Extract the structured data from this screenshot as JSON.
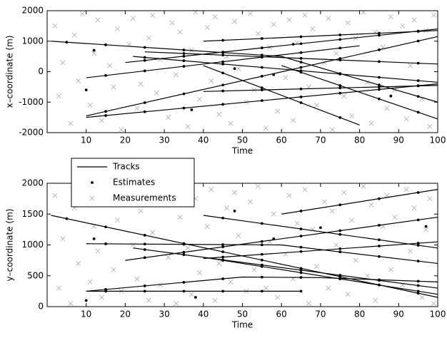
{
  "chart_data": [
    {
      "type": "scatter",
      "xlabel": "Time",
      "ylabel": "x–coordinate (m)",
      "xlim": [
        0,
        100
      ],
      "ylim": [
        -2000,
        2000
      ],
      "xticks": [
        10,
        20,
        30,
        40,
        50,
        60,
        70,
        80,
        90,
        100
      ],
      "yticks": [
        -2000,
        -1000,
        0,
        1000,
        2000
      ],
      "series": [
        {
          "marker": "line",
          "color": "#000000",
          "tracks": [
            {
              "x": [
                1,
                60,
                100
              ],
              "values": [
                1000,
                500,
                -1000
              ]
            },
            {
              "x": [
                10,
                100
              ],
              "values": [
                -1450,
                1150
              ]
            },
            {
              "x": [
                10,
                100
              ],
              "values": [
                -1500,
                -400
              ]
            },
            {
              "x": [
                10,
                80
              ],
              "values": [
                -200,
                850
              ]
            },
            {
              "x": [
                20,
                100
              ],
              "values": [
                300,
                1400
              ]
            },
            {
              "x": [
                22,
                100
              ],
              "values": [
                500,
                -350
              ]
            },
            {
              "x": [
                40,
                100
              ],
              "values": [
                1000,
                1350
              ]
            },
            {
              "x": [
                40,
                80
              ],
              "values": [
                200,
                -1750
              ]
            },
            {
              "x": [
                60,
                100
              ],
              "values": [
                200,
                -1550
              ]
            },
            {
              "x": [
                40,
                100
              ],
              "values": [
                -650,
                -450
              ]
            },
            {
              "x": [
                25,
                100
              ],
              "values": [
                650,
                250
              ]
            }
          ]
        },
        {
          "marker": "dot",
          "color": "#000000",
          "x": [
            5,
            15,
            25,
            35,
            45,
            55,
            65,
            75,
            85,
            95,
            15,
            25,
            35,
            45,
            55,
            65,
            75,
            85,
            95,
            15,
            25,
            35,
            45,
            55,
            65,
            75,
            85,
            95,
            15,
            25,
            35,
            45,
            55,
            65,
            75,
            25,
            35,
            45,
            55,
            65,
            75,
            85,
            95,
            25,
            35,
            45,
            55,
            65,
            75,
            85,
            95,
            45,
            55,
            65,
            75,
            85,
            95,
            45,
            55,
            65,
            75,
            65,
            75,
            85,
            95,
            45,
            55,
            65,
            75,
            85,
            95,
            35,
            45,
            55,
            65,
            75,
            85,
            95,
            10,
            12,
            37,
            48,
            58,
            63,
            88
          ],
          "values": [
            966,
            881,
            796,
            711,
            627,
            542,
            312,
            -62,
            -437,
            -812,
            -1306,
            -1017,
            -728,
            -439,
            -150,
            139,
            428,
            717,
            1006,
            -1439,
            -1317,
            -1194,
            -1072,
            -950,
            -828,
            -706,
            -583,
            -461,
            -125,
            25,
            175,
            325,
            475,
            625,
            775,
            369,
            506,
            644,
            781,
            919,
            1056,
            1194,
            1331,
            467,
            358,
            249,
            140,
            31,
            -78,
            -187,
            -296,
            1029,
            1088,
            1146,
            1204,
            1263,
            1321,
            -44,
            -531,
            -1019,
            -1506,
            -19,
            -456,
            -894,
            -1331,
            -633,
            -600,
            -567,
            -533,
            -500,
            -467,
            597,
            543,
            490,
            437,
            383,
            330,
            277,
            -600,
            700,
            -1250,
            100,
            -100,
            900,
            -800
          ]
        },
        {
          "marker": "x",
          "color": "#b4b4b4",
          "x": [
            2,
            3,
            4,
            6,
            7,
            8,
            9,
            11,
            12,
            13,
            14,
            16,
            17,
            18,
            19,
            21,
            22,
            23,
            24,
            26,
            27,
            28,
            29,
            31,
            32,
            33,
            34,
            36,
            37,
            38,
            39,
            41,
            42,
            43,
            44,
            46,
            47,
            48,
            49,
            51,
            52,
            53,
            54,
            56,
            57,
            58,
            59,
            61,
            62,
            63,
            64,
            66,
            67,
            68,
            69,
            71,
            72,
            73,
            74,
            76,
            77,
            78,
            79,
            81,
            82,
            83,
            84,
            86,
            87,
            88,
            89,
            91,
            92,
            93,
            94,
            96,
            97,
            98,
            99
          ],
          "values": [
            1500,
            -800,
            300,
            -1700,
            1200,
            -300,
            1900,
            -1100,
            600,
            1700,
            -1600,
            200,
            -500,
            1400,
            -1900,
            900,
            1750,
            -1200,
            -400,
            1100,
            1850,
            -700,
            400,
            -1500,
            1600,
            -100,
            1300,
            -1800,
            700,
            1950,
            -900,
            1450,
            -300,
            1800,
            -1400,
            500,
            -1700,
            1650,
            100,
            -1000,
            1900,
            -600,
            1250,
            -1850,
            800,
            1550,
            -1300,
            -200,
            1700,
            -1600,
            950,
            1850,
            -500,
            1400,
            -1100,
            300,
            1750,
            -1900,
            600,
            -800,
            1600,
            -1450,
            1100,
            1950,
            -350,
            -1700,
            1300,
            800,
            -1200,
            1800,
            -600,
            1500,
            -1550,
            200,
            1700,
            -900,
            1350,
            -1800,
            1850
          ]
        }
      ]
    },
    {
      "type": "scatter",
      "xlabel": "Time",
      "ylabel": "y–coordinate (m)",
      "xlim": [
        0,
        100
      ],
      "ylim": [
        0,
        2000
      ],
      "xticks": [
        10,
        20,
        30,
        40,
        50,
        60,
        70,
        80,
        90,
        100
      ],
      "yticks": [
        0,
        500,
        1000,
        1500,
        2000
      ],
      "legend": "upper left",
      "series": [
        {
          "name": "Tracks",
          "marker": "line",
          "color": "#000000",
          "tracks": [
            {
              "x": [
                1,
                100
              ],
              "values": [
                1480,
                150
              ]
            },
            {
              "x": [
                10,
                60,
                100
              ],
              "values": [
                1020,
                1000,
                700
              ]
            },
            {
              "x": [
                10,
                65
              ],
              "values": [
                250,
                250
              ]
            },
            {
              "x": [
                10,
                50,
                70,
                100
              ],
              "values": [
                250,
                480,
                470,
                400
              ]
            },
            {
              "x": [
                20,
                100
              ],
              "values": [
                750,
                1450
              ]
            },
            {
              "x": [
                40,
                100
              ],
              "values": [
                1480,
                950
              ]
            },
            {
              "x": [
                60,
                100
              ],
              "values": [
                1500,
                1900
              ]
            },
            {
              "x": [
                22,
                100
              ],
              "values": [
                950,
                300
              ]
            },
            {
              "x": [
                40,
                100
              ],
              "values": [
                800,
                200
              ]
            },
            {
              "x": [
                40,
                100
              ],
              "values": [
                780,
                1050
              ]
            }
          ]
        },
        {
          "name": "Estimates",
          "marker": "dot",
          "color": "#000000",
          "x": [
            5,
            15,
            25,
            35,
            45,
            55,
            65,
            75,
            85,
            95,
            15,
            25,
            35,
            45,
            55,
            65,
            75,
            85,
            95,
            15,
            25,
            35,
            45,
            55,
            65,
            15,
            25,
            35,
            45,
            55,
            65,
            75,
            85,
            95,
            25,
            35,
            45,
            55,
            65,
            75,
            85,
            95,
            45,
            55,
            65,
            75,
            85,
            95,
            65,
            75,
            85,
            95,
            25,
            35,
            45,
            55,
            65,
            75,
            85,
            95,
            45,
            55,
            65,
            75,
            85,
            95,
            45,
            55,
            65,
            75,
            85,
            95,
            10,
            12,
            38,
            48,
            58,
            70,
            97
          ],
          "values": [
            1426,
            1292,
            1158,
            1023,
            889,
            755,
            620,
            486,
            352,
            217,
            1018,
            1014,
            1010,
            1006,
            1002,
            963,
            888,
            813,
            738,
            250,
            250,
            250,
            250,
            250,
            250,
            279,
            336,
            394,
            451,
            478,
            473,
            458,
            435,
            412,
            794,
            881,
            969,
            1056,
            1144,
            1231,
            1319,
            1406,
            1436,
            1348,
            1259,
            1171,
            1083,
            994,
            1550,
            1650,
            1750,
            1850,
            925,
            842,
            758,
            675,
            592,
            508,
            425,
            342,
            750,
            650,
            550,
            450,
            350,
            250,
            803,
            848,
            893,
            938,
            983,
            1028,
            100,
            1100,
            150,
            1550,
            1100,
            1280,
            1300
          ]
        },
        {
          "name": "Measurements",
          "marker": "x",
          "color": "#b4b4b4",
          "x": [
            2,
            3,
            4,
            6,
            7,
            8,
            9,
            11,
            12,
            13,
            14,
            16,
            17,
            18,
            19,
            21,
            22,
            23,
            24,
            26,
            27,
            28,
            29,
            31,
            32,
            33,
            34,
            36,
            37,
            38,
            39,
            41,
            42,
            43,
            44,
            46,
            47,
            48,
            49,
            51,
            52,
            53,
            54,
            56,
            57,
            58,
            59,
            61,
            62,
            63,
            64,
            66,
            67,
            68,
            69,
            71,
            72,
            73,
            74,
            76,
            77,
            78,
            79,
            81,
            82,
            83,
            84,
            86,
            87,
            88,
            89,
            91,
            92,
            93,
            94,
            96,
            97,
            98,
            99
          ],
          "values": [
            1800,
            300,
            1100,
            50,
            1600,
            700,
            1950,
            400,
            1300,
            900,
            150,
            1750,
            600,
            1400,
            250,
            1850,
            1000,
            450,
            1550,
            100,
            1200,
            1900,
            350,
            800,
            1650,
            50,
            1450,
            950,
            200,
            1750,
            550,
            1300,
            1900,
            100,
            700,
            1600,
            400,
            1850,
            1150,
            250,
            1700,
            600,
            1950,
            300,
            1050,
            1500,
            150,
            850,
            1800,
            450,
            1350,
            1900,
            50,
            1250,
            650,
            1700,
            300,
            1550,
            1000,
            1850,
            200,
            1400,
            750,
            1950,
            500,
            1650,
            100,
            1300,
            1800,
            600,
            1450,
            350,
            1900,
            900,
            1600,
            150,
            1250,
            1750,
            50
          ]
        }
      ]
    }
  ]
}
